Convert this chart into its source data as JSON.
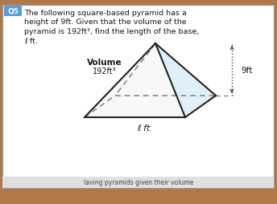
{
  "title_q": "Q5",
  "volume_label": "Volume",
  "volume_value": "192ft³",
  "height_label": "9ft",
  "base_label": "ℓ ft",
  "outer_bg": "#b07848",
  "card_bg": "#ffffff",
  "card_border": "#999999",
  "pyramid_edge_color": "#222222",
  "base_fill": "#a8d8f0",
  "face_white": "#f0f0f0",
  "face_light": "#e0f0f8",
  "dashed_color": "#888888",
  "arrow_color": "#444444",
  "q5_box_color": "#5b9bd5",
  "bottom_text": "laving pyramids given their volume",
  "bottom_bg": "#e8e8e8",
  "question_lines": [
    "The following square-based pyramid has a",
    "height of 9ft. Given that the volume of the",
    "pyramid is 192ft³, find the length of the base,",
    "ℓ ft."
  ]
}
